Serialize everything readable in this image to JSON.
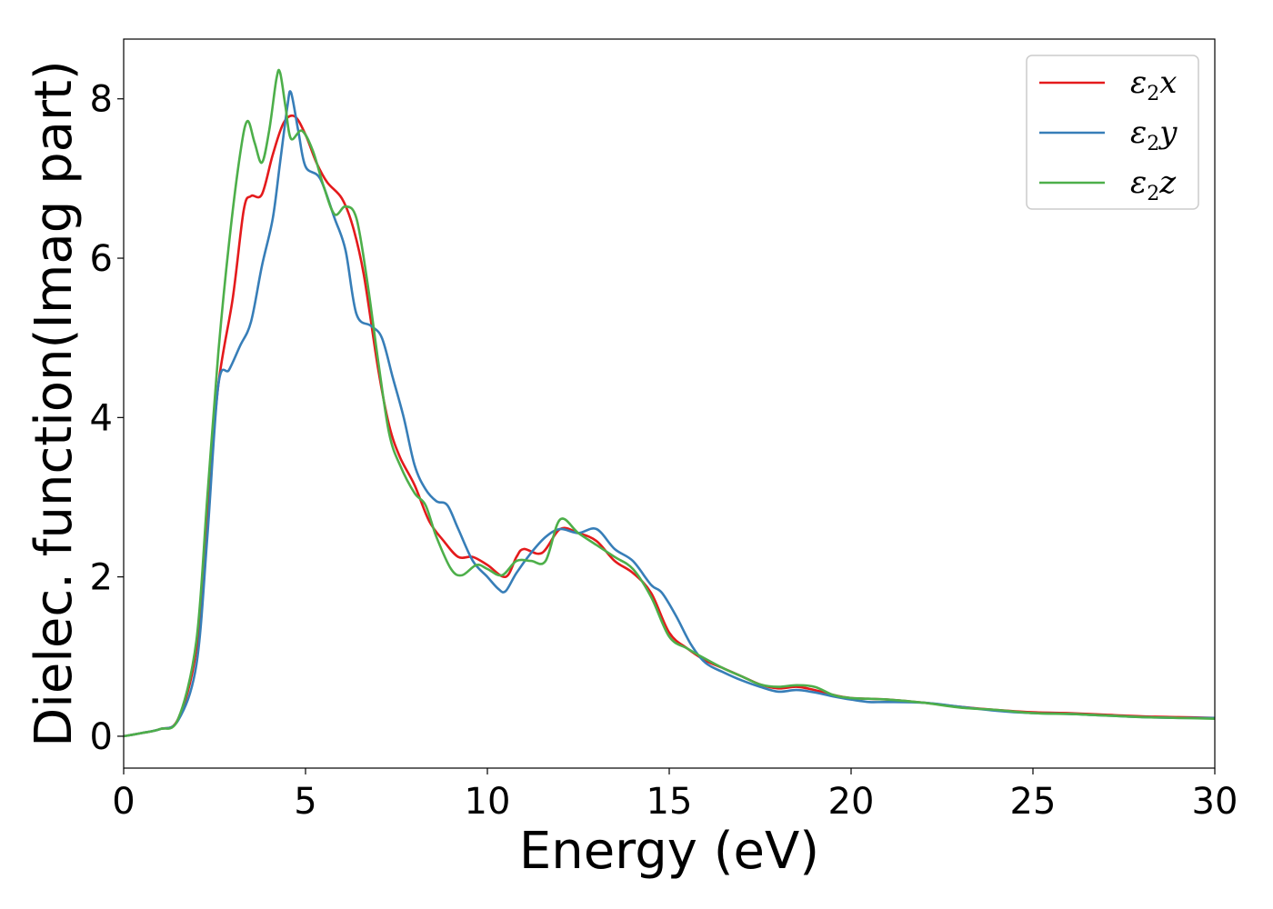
{
  "chart_data": {
    "type": "line",
    "title": "",
    "xlabel": "Energy (eV)",
    "ylabel": "Dielec. function(Imag part)",
    "xlim": [
      0,
      30
    ],
    "ylim": [
      -0.4,
      8.75
    ],
    "xticks": [
      0,
      5,
      10,
      15,
      20,
      25,
      30
    ],
    "yticks": [
      0,
      2,
      4,
      6,
      8
    ],
    "grid": false,
    "legend_position": "top-right",
    "series": [
      {
        "name": "ε₂x",
        "legend": {
          "base": "ε",
          "sub": "2",
          "suffix": "x"
        },
        "color": "#e41a1c",
        "points": [
          [
            0,
            0
          ],
          [
            0.5,
            0.04
          ],
          [
            1,
            0.09
          ],
          [
            1.5,
            0.22
          ],
          [
            2,
            1.1
          ],
          [
            2.3,
            2.8
          ],
          [
            2.6,
            4.4
          ],
          [
            3,
            5.5
          ],
          [
            3.3,
            6.6
          ],
          [
            3.5,
            6.78
          ],
          [
            3.8,
            6.8
          ],
          [
            4.1,
            7.3
          ],
          [
            4.4,
            7.7
          ],
          [
            4.7,
            7.78
          ],
          [
            5,
            7.55
          ],
          [
            5.3,
            7.2
          ],
          [
            5.6,
            6.95
          ],
          [
            6,
            6.75
          ],
          [
            6.3,
            6.4
          ],
          [
            6.6,
            5.8
          ],
          [
            7,
            4.6
          ],
          [
            7.3,
            3.9
          ],
          [
            7.6,
            3.5
          ],
          [
            8,
            3.15
          ],
          [
            8.4,
            2.7
          ],
          [
            8.8,
            2.45
          ],
          [
            9.2,
            2.25
          ],
          [
            9.6,
            2.25
          ],
          [
            10,
            2.15
          ],
          [
            10.5,
            2.0
          ],
          [
            10.8,
            2.25
          ],
          [
            11,
            2.35
          ],
          [
            11.5,
            2.3
          ],
          [
            12,
            2.6
          ],
          [
            12.5,
            2.55
          ],
          [
            13,
            2.45
          ],
          [
            13.5,
            2.2
          ],
          [
            14,
            2.05
          ],
          [
            14.5,
            1.8
          ],
          [
            15,
            1.3
          ],
          [
            15.5,
            1.1
          ],
          [
            16,
            0.95
          ],
          [
            16.5,
            0.85
          ],
          [
            17,
            0.75
          ],
          [
            17.5,
            0.65
          ],
          [
            18,
            0.6
          ],
          [
            18.5,
            0.62
          ],
          [
            19,
            0.58
          ],
          [
            19.5,
            0.52
          ],
          [
            20,
            0.48
          ],
          [
            21,
            0.46
          ],
          [
            22,
            0.42
          ],
          [
            23,
            0.37
          ],
          [
            24,
            0.33
          ],
          [
            25,
            0.3
          ],
          [
            26,
            0.29
          ],
          [
            27,
            0.27
          ],
          [
            28,
            0.25
          ],
          [
            29,
            0.24
          ],
          [
            30,
            0.23
          ]
        ]
      },
      {
        "name": "ε₂y",
        "legend": {
          "base": "ε",
          "sub": "2",
          "suffix": "y"
        },
        "color": "#377eb8",
        "points": [
          [
            0,
            0
          ],
          [
            0.5,
            0.04
          ],
          [
            1,
            0.09
          ],
          [
            1.5,
            0.2
          ],
          [
            2,
            0.9
          ],
          [
            2.3,
            2.5
          ],
          [
            2.6,
            4.4
          ],
          [
            2.9,
            4.6
          ],
          [
            3.2,
            4.9
          ],
          [
            3.5,
            5.2
          ],
          [
            3.8,
            5.9
          ],
          [
            4.1,
            6.5
          ],
          [
            4.3,
            7.2
          ],
          [
            4.5,
            7.9
          ],
          [
            4.6,
            8.08
          ],
          [
            4.8,
            7.6
          ],
          [
            5,
            7.15
          ],
          [
            5.4,
            7.0
          ],
          [
            5.8,
            6.5
          ],
          [
            6.1,
            6.1
          ],
          [
            6.4,
            5.3
          ],
          [
            6.8,
            5.15
          ],
          [
            7.1,
            5.0
          ],
          [
            7.4,
            4.5
          ],
          [
            7.7,
            4.0
          ],
          [
            8,
            3.4
          ],
          [
            8.3,
            3.1
          ],
          [
            8.6,
            2.95
          ],
          [
            8.9,
            2.9
          ],
          [
            9.2,
            2.6
          ],
          [
            9.6,
            2.2
          ],
          [
            10,
            2.0
          ],
          [
            10.3,
            1.85
          ],
          [
            10.5,
            1.82
          ],
          [
            10.8,
            2.05
          ],
          [
            11.2,
            2.3
          ],
          [
            11.6,
            2.5
          ],
          [
            12,
            2.6
          ],
          [
            12.5,
            2.55
          ],
          [
            13,
            2.6
          ],
          [
            13.5,
            2.35
          ],
          [
            14,
            2.2
          ],
          [
            14.5,
            1.9
          ],
          [
            14.8,
            1.8
          ],
          [
            15.2,
            1.5
          ],
          [
            15.6,
            1.15
          ],
          [
            16,
            0.92
          ],
          [
            16.5,
            0.8
          ],
          [
            17,
            0.7
          ],
          [
            17.5,
            0.62
          ],
          [
            18,
            0.56
          ],
          [
            18.5,
            0.58
          ],
          [
            19,
            0.55
          ],
          [
            19.5,
            0.5
          ],
          [
            20,
            0.46
          ],
          [
            20.5,
            0.43
          ],
          [
            21,
            0.43
          ],
          [
            22,
            0.42
          ],
          [
            23,
            0.37
          ],
          [
            24,
            0.32
          ],
          [
            25,
            0.29
          ],
          [
            26,
            0.28
          ],
          [
            27,
            0.26
          ],
          [
            28,
            0.24
          ],
          [
            29,
            0.23
          ],
          [
            30,
            0.23
          ]
        ]
      },
      {
        "name": "ε₂z",
        "legend": {
          "base": "ε",
          "sub": "2",
          "suffix": "z"
        },
        "color": "#4daf4a",
        "points": [
          [
            0,
            0
          ],
          [
            0.5,
            0.04
          ],
          [
            1,
            0.09
          ],
          [
            1.5,
            0.22
          ],
          [
            2,
            1.2
          ],
          [
            2.3,
            3.0
          ],
          [
            2.6,
            4.8
          ],
          [
            2.9,
            6.2
          ],
          [
            3.2,
            7.3
          ],
          [
            3.4,
            7.72
          ],
          [
            3.6,
            7.45
          ],
          [
            3.8,
            7.2
          ],
          [
            4.0,
            7.6
          ],
          [
            4.2,
            8.25
          ],
          [
            4.3,
            8.33
          ],
          [
            4.45,
            7.9
          ],
          [
            4.6,
            7.5
          ],
          [
            4.9,
            7.6
          ],
          [
            5.2,
            7.35
          ],
          [
            5.5,
            6.9
          ],
          [
            5.8,
            6.55
          ],
          [
            6.1,
            6.65
          ],
          [
            6.4,
            6.5
          ],
          [
            6.7,
            5.7
          ],
          [
            7,
            4.7
          ],
          [
            7.3,
            3.8
          ],
          [
            7.6,
            3.4
          ],
          [
            8,
            3.05
          ],
          [
            8.3,
            2.9
          ],
          [
            8.6,
            2.5
          ],
          [
            9,
            2.1
          ],
          [
            9.3,
            2.02
          ],
          [
            9.7,
            2.15
          ],
          [
            10,
            2.1
          ],
          [
            10.4,
            2.02
          ],
          [
            10.8,
            2.2
          ],
          [
            11.2,
            2.2
          ],
          [
            11.6,
            2.2
          ],
          [
            12,
            2.72
          ],
          [
            12.5,
            2.55
          ],
          [
            13,
            2.4
          ],
          [
            13.5,
            2.25
          ],
          [
            14,
            2.1
          ],
          [
            14.5,
            1.75
          ],
          [
            15,
            1.25
          ],
          [
            15.5,
            1.1
          ],
          [
            16,
            0.97
          ],
          [
            16.5,
            0.85
          ],
          [
            17,
            0.75
          ],
          [
            17.5,
            0.65
          ],
          [
            18,
            0.62
          ],
          [
            18.5,
            0.64
          ],
          [
            19,
            0.62
          ],
          [
            19.5,
            0.52
          ],
          [
            20,
            0.48
          ],
          [
            21,
            0.46
          ],
          [
            22,
            0.42
          ],
          [
            23,
            0.36
          ],
          [
            24,
            0.33
          ],
          [
            25,
            0.29
          ],
          [
            26,
            0.28
          ],
          [
            27,
            0.26
          ],
          [
            28,
            0.24
          ],
          [
            29,
            0.23
          ],
          [
            30,
            0.22
          ]
        ]
      }
    ]
  }
}
